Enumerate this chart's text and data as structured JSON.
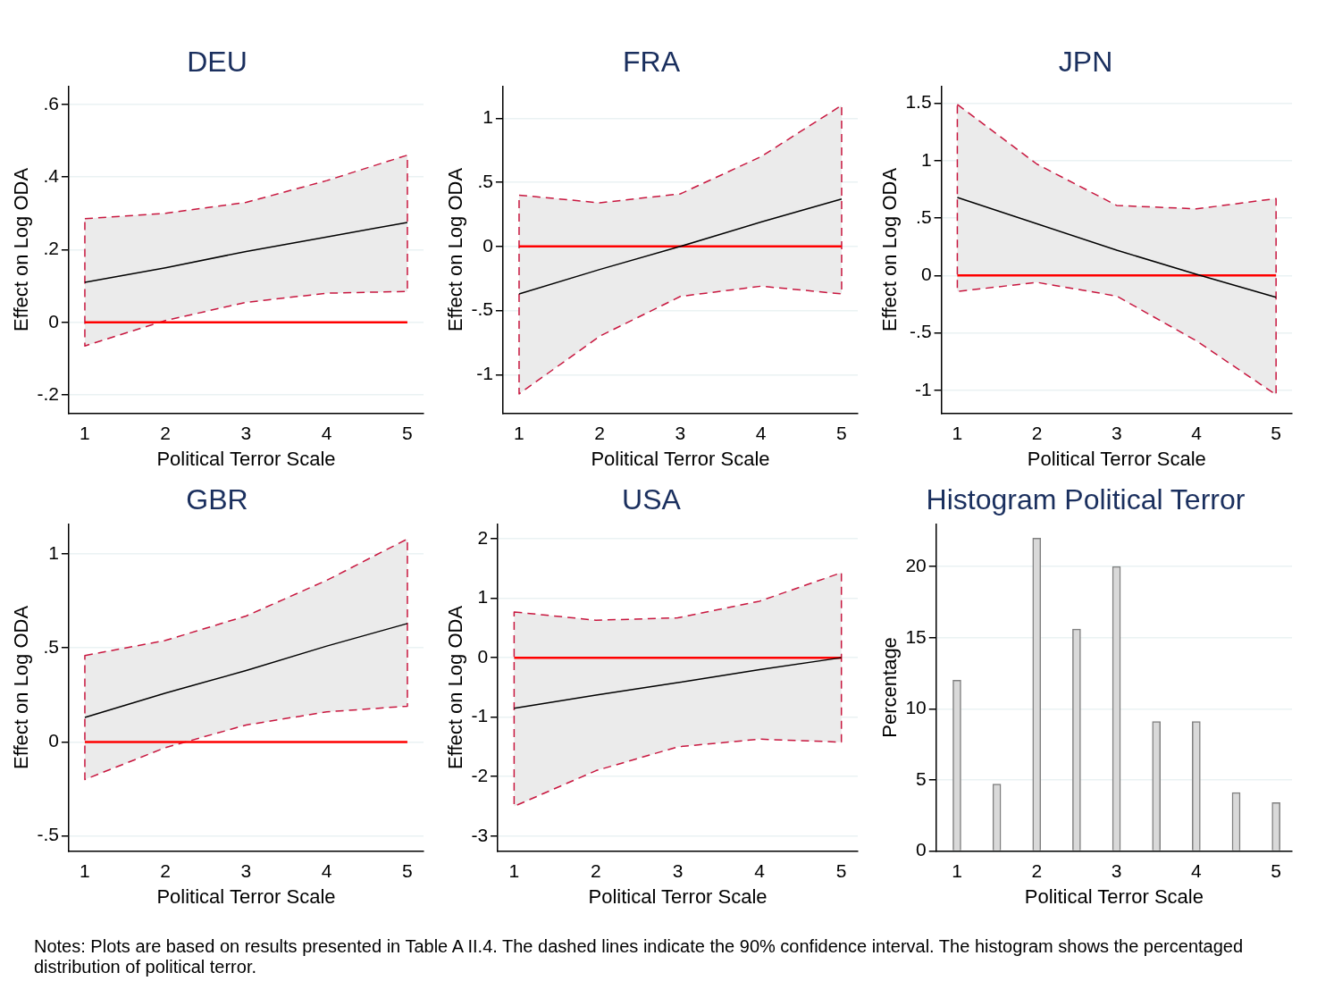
{
  "chart_data": [
    {
      "type": "line",
      "title": "DEU",
      "xlabel": "Political Terror Scale",
      "ylabel": "Effect on Log ODA",
      "x": [
        1,
        2,
        3,
        4,
        5
      ],
      "xlim": [
        0.8,
        5.2
      ],
      "xticks": [
        1,
        2,
        3,
        4,
        5
      ],
      "ylim": [
        -0.25,
        0.65
      ],
      "yticks": [
        {
          "value": -0.2,
          "label": "-.2"
        },
        0,
        {
          "value": 0.2,
          "label": ".2"
        },
        {
          "value": 0.4,
          "label": ".4"
        },
        {
          "value": 0.6,
          "label": ".6"
        }
      ],
      "grid": "y",
      "series": [
        {
          "color": "#000000",
          "values": [
            0.11,
            0.15,
            0.195,
            0.235,
            0.275
          ],
          "lower": [
            -0.065,
            0.005,
            0.055,
            0.08,
            0.085
          ],
          "upper": [
            0.285,
            0.3,
            0.33,
            0.39,
            0.46
          ]
        }
      ],
      "ref_lines": [
        {
          "axis": "y",
          "value": 0,
          "color": "#ff0000"
        }
      ]
    },
    {
      "type": "line",
      "title": "FRA",
      "xlabel": "Political Terror Scale",
      "ylabel": "Effect on Log ODA",
      "x": [
        1,
        2,
        3,
        4,
        5
      ],
      "xlim": [
        0.8,
        5.2
      ],
      "xticks": [
        1,
        2,
        3,
        4,
        5
      ],
      "ylim": [
        -1.3,
        1.25
      ],
      "yticks": [
        -1,
        {
          "value": -0.5,
          "label": "-.5"
        },
        0,
        {
          "value": 0.5,
          "label": ".5"
        },
        1
      ],
      "grid": "y",
      "series": [
        {
          "color": "#000000",
          "values": [
            -0.37,
            -0.18,
            0,
            0.19,
            0.37
          ],
          "lower": [
            -1.15,
            -0.7,
            -0.39,
            -0.31,
            -0.37
          ],
          "upper": [
            0.4,
            0.34,
            0.41,
            0.7,
            1.1
          ]
        }
      ],
      "ref_lines": [
        {
          "axis": "y",
          "value": 0,
          "color": "#ff0000"
        }
      ]
    },
    {
      "type": "line",
      "title": "JPN",
      "xlabel": "Political Terror Scale",
      "ylabel": "Effect on Log ODA",
      "x": [
        1,
        2,
        3,
        4,
        5
      ],
      "xlim": [
        0.8,
        5.2
      ],
      "xticks": [
        1,
        2,
        3,
        4,
        5
      ],
      "ylim": [
        -1.2,
        1.65
      ],
      "yticks": [
        -1,
        {
          "value": -0.5,
          "label": "-.5"
        },
        0,
        {
          "value": 0.5,
          "label": ".5"
        },
        1,
        1.5
      ],
      "grid": "y",
      "series": [
        {
          "color": "#000000",
          "values": [
            0.68,
            0.45,
            0.22,
            0.01,
            -0.19
          ],
          "lower": [
            -0.14,
            -0.06,
            -0.18,
            -0.57,
            -1.04
          ],
          "upper": [
            1.49,
            0.97,
            0.61,
            0.58,
            0.67
          ]
        }
      ],
      "ref_lines": [
        {
          "axis": "y",
          "value": 0,
          "color": "#ff0000"
        }
      ]
    },
    {
      "type": "line",
      "title": "GBR",
      "xlabel": "Political Terror Scale",
      "ylabel": "Effect on Log ODA",
      "x": [
        1,
        2,
        3,
        4,
        5
      ],
      "xlim": [
        0.8,
        5.2
      ],
      "xticks": [
        1,
        2,
        3,
        4,
        5
      ],
      "ylim": [
        -0.58,
        1.16
      ],
      "yticks": [
        {
          "value": -0.5,
          "label": "-.5"
        },
        0,
        {
          "value": 0.5,
          "label": ".5"
        },
        1
      ],
      "grid": "y",
      "series": [
        {
          "color": "#000000",
          "values": [
            0.13,
            0.26,
            0.38,
            0.51,
            0.63
          ],
          "lower": [
            -0.2,
            -0.03,
            0.09,
            0.16,
            0.19
          ],
          "upper": [
            0.46,
            0.54,
            0.67,
            0.86,
            1.08
          ]
        }
      ],
      "ref_lines": [
        {
          "axis": "y",
          "value": 0,
          "color": "#ff0000"
        }
      ]
    },
    {
      "type": "line",
      "title": "USA",
      "xlabel": "Political Terror Scale",
      "ylabel": "Effect on Log ODA",
      "x": [
        1,
        2,
        3,
        4,
        5
      ],
      "xlim": [
        0.8,
        5.2
      ],
      "xticks": [
        1,
        2,
        3,
        4,
        5
      ],
      "ylim": [
        -3.25,
        2.25
      ],
      "yticks": [
        -3,
        -2,
        -1,
        0,
        1,
        2
      ],
      "grid": "y",
      "series": [
        {
          "color": "#000000",
          "values": [
            -0.85,
            -0.63,
            -0.42,
            -0.2,
            0
          ],
          "lower": [
            -2.5,
            -1.9,
            -1.5,
            -1.37,
            -1.42
          ],
          "upper": [
            0.77,
            0.63,
            0.67,
            0.95,
            1.43
          ]
        }
      ],
      "ref_lines": [
        {
          "axis": "y",
          "value": 0,
          "color": "#ff0000"
        }
      ]
    },
    {
      "type": "bar",
      "title": "Histogram Political Terror",
      "xlabel": "Political Terror Scale",
      "ylabel": "Percentage",
      "x": [
        1,
        1.5,
        2,
        2.5,
        3,
        3.5,
        4,
        4.5,
        5
      ],
      "xlim": [
        0.74,
        5.2
      ],
      "xticks": [
        1,
        2,
        3,
        4,
        5
      ],
      "ylim": [
        0,
        23
      ],
      "yticks": [
        0,
        5,
        10,
        15,
        20
      ],
      "grid": "y",
      "series": [
        {
          "color": "#d9d9d9",
          "values": [
            12,
            4.7,
            22,
            15.6,
            20,
            9.1,
            9.1,
            4.1,
            3.4
          ]
        }
      ],
      "annotations": [
        "Notes: Plots are based on results presented in Table A II.4. The dashed lines indicate the 90% confidence interval. The histogram shows the percentaged distribution of political terror."
      ]
    }
  ]
}
